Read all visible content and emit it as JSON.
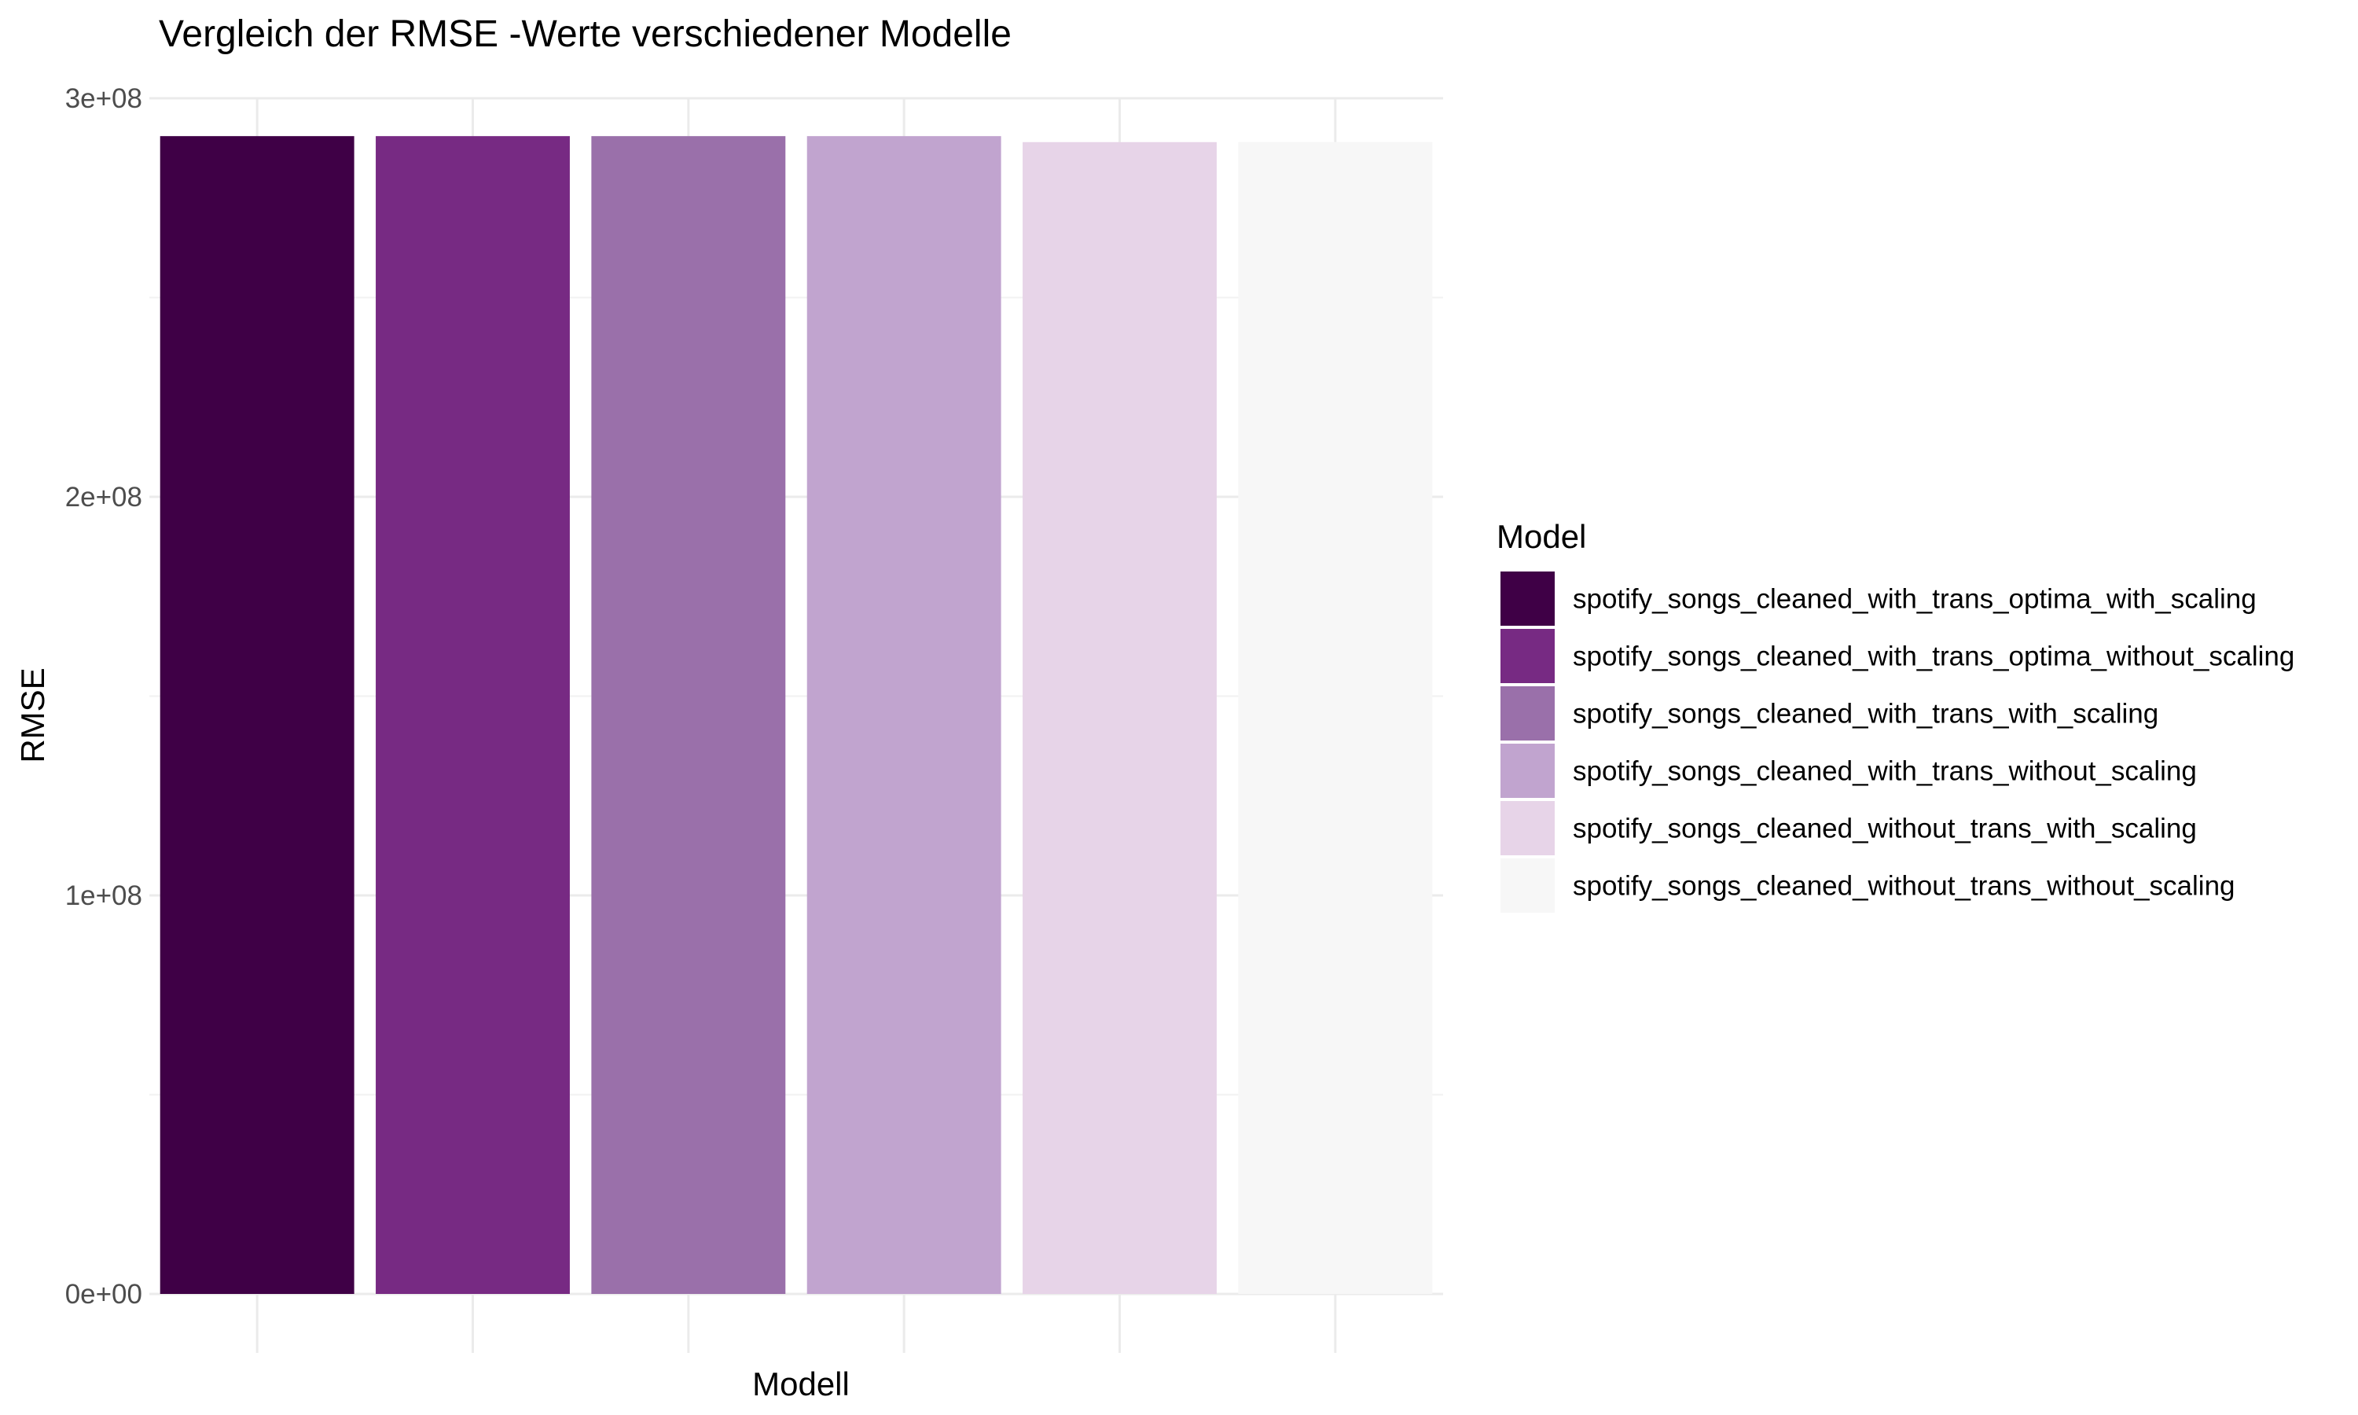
{
  "chart_data": {
    "type": "bar",
    "title": "Vergleich der RMSE -Werte verschiedener Modelle",
    "xlabel": "Modell",
    "ylabel": "RMSE",
    "ylim": [
      0,
      300000000
    ],
    "y_ticks": [
      {
        "value": 0,
        "label": "0e+00"
      },
      {
        "value": 100000000,
        "label": "1e+08"
      },
      {
        "value": 200000000,
        "label": "2e+08"
      },
      {
        "value": 300000000,
        "label": "3e+08"
      }
    ],
    "x_tick_labels_visible": false,
    "grid": true,
    "legend": {
      "title": "Model",
      "position": "right"
    },
    "categories": [
      "spotify_songs_cleaned_with_trans_optima_with_scaling",
      "spotify_songs_cleaned_with_trans_optima_without_scaling",
      "spotify_songs_cleaned_with_trans_with_scaling",
      "spotify_songs_cleaned_with_trans_without_scaling",
      "spotify_songs_cleaned_without_trans_with_scaling",
      "spotify_songs_cleaned_without_trans_without_scaling"
    ],
    "values": [
      290500000,
      290500000,
      290500000,
      290500000,
      289000000,
      289000000
    ],
    "colors": [
      "#3f0046",
      "#772a83",
      "#9a70aa",
      "#c1a4cf",
      "#e7d4e8",
      "#f7f7f7"
    ]
  }
}
